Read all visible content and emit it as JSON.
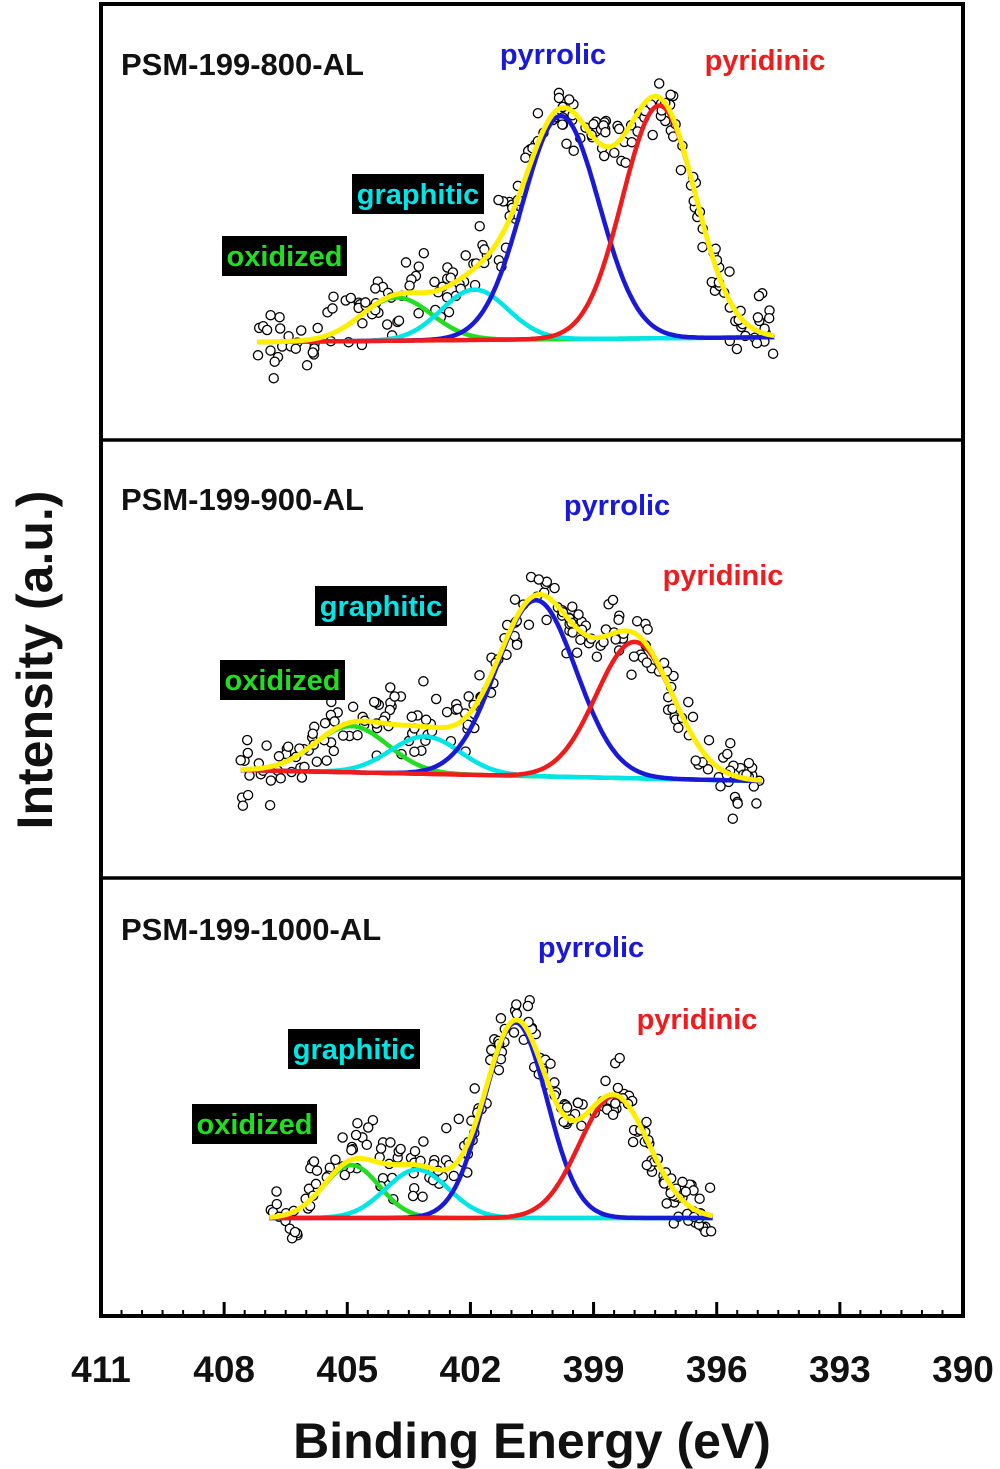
{
  "chart_data": {
    "type": "scatter",
    "xlabel": "Binding Energy (eV)",
    "ylabel": "Intensity (a.u.)",
    "xlim": [
      411,
      390
    ],
    "x_reversed": true,
    "x_ticks": [
      411,
      408,
      405,
      402,
      399,
      396,
      393,
      390
    ],
    "grid": false,
    "legend": "none",
    "colors": {
      "oxidized": "#22dd22",
      "graphitic": "#00e5e5",
      "pyrrolic": "#1a1ad6",
      "pyridinic": "#ee1c1c",
      "envelope": "#ffee00",
      "baseline": "#ee00ee",
      "data_points": "#000000",
      "label_box": "#000000"
    },
    "panels": [
      {
        "title": "PSM-199-800-AL",
        "x_range": [
          407.2,
          394.6
        ],
        "baseline": [
          0.1,
          0.12
        ],
        "noise": 0.13,
        "components": [
          {
            "label": "oxidized",
            "center": 403.8,
            "amplitude": 0.18,
            "fwhm": 2.0
          },
          {
            "label": "graphitic",
            "center": 401.9,
            "amplitude": 0.21,
            "fwhm": 1.9
          },
          {
            "label": "pyrrolic",
            "center": 399.8,
            "amplitude": 0.93,
            "fwhm": 2.2
          },
          {
            "label": "pyridinic",
            "center": 397.4,
            "amplitude": 0.97,
            "fwhm": 2.1
          }
        ]
      },
      {
        "title": "PSM-199-900-AL",
        "x_range": [
          407.6,
          394.9
        ],
        "baseline": [
          0.1,
          0.05
        ],
        "noise": 0.14,
        "components": [
          {
            "label": "oxidized",
            "center": 404.9,
            "amplitude": 0.21,
            "fwhm": 2.1
          },
          {
            "label": "graphitic",
            "center": 403.1,
            "amplitude": 0.17,
            "fwhm": 2.0
          },
          {
            "label": "pyrrolic",
            "center": 400.4,
            "amplitude": 0.8,
            "fwhm": 2.3
          },
          {
            "label": "pyridinic",
            "center": 398.0,
            "amplitude": 0.62,
            "fwhm": 2.2
          }
        ]
      },
      {
        "title": "PSM-199-1000-AL",
        "x_range": [
          406.9,
          396.1
        ],
        "baseline": [
          0.1,
          0.1
        ],
        "noise": 0.13,
        "components": [
          {
            "label": "oxidized",
            "center": 404.9,
            "amplitude": 0.23,
            "fwhm": 1.6
          },
          {
            "label": "graphitic",
            "center": 403.3,
            "amplitude": 0.21,
            "fwhm": 1.8
          },
          {
            "label": "pyrrolic",
            "center": 400.9,
            "amplitude": 0.85,
            "fwhm": 1.8
          },
          {
            "label": "pyridinic",
            "center": 398.5,
            "amplitude": 0.53,
            "fwhm": 2.0
          }
        ]
      }
    ]
  }
}
